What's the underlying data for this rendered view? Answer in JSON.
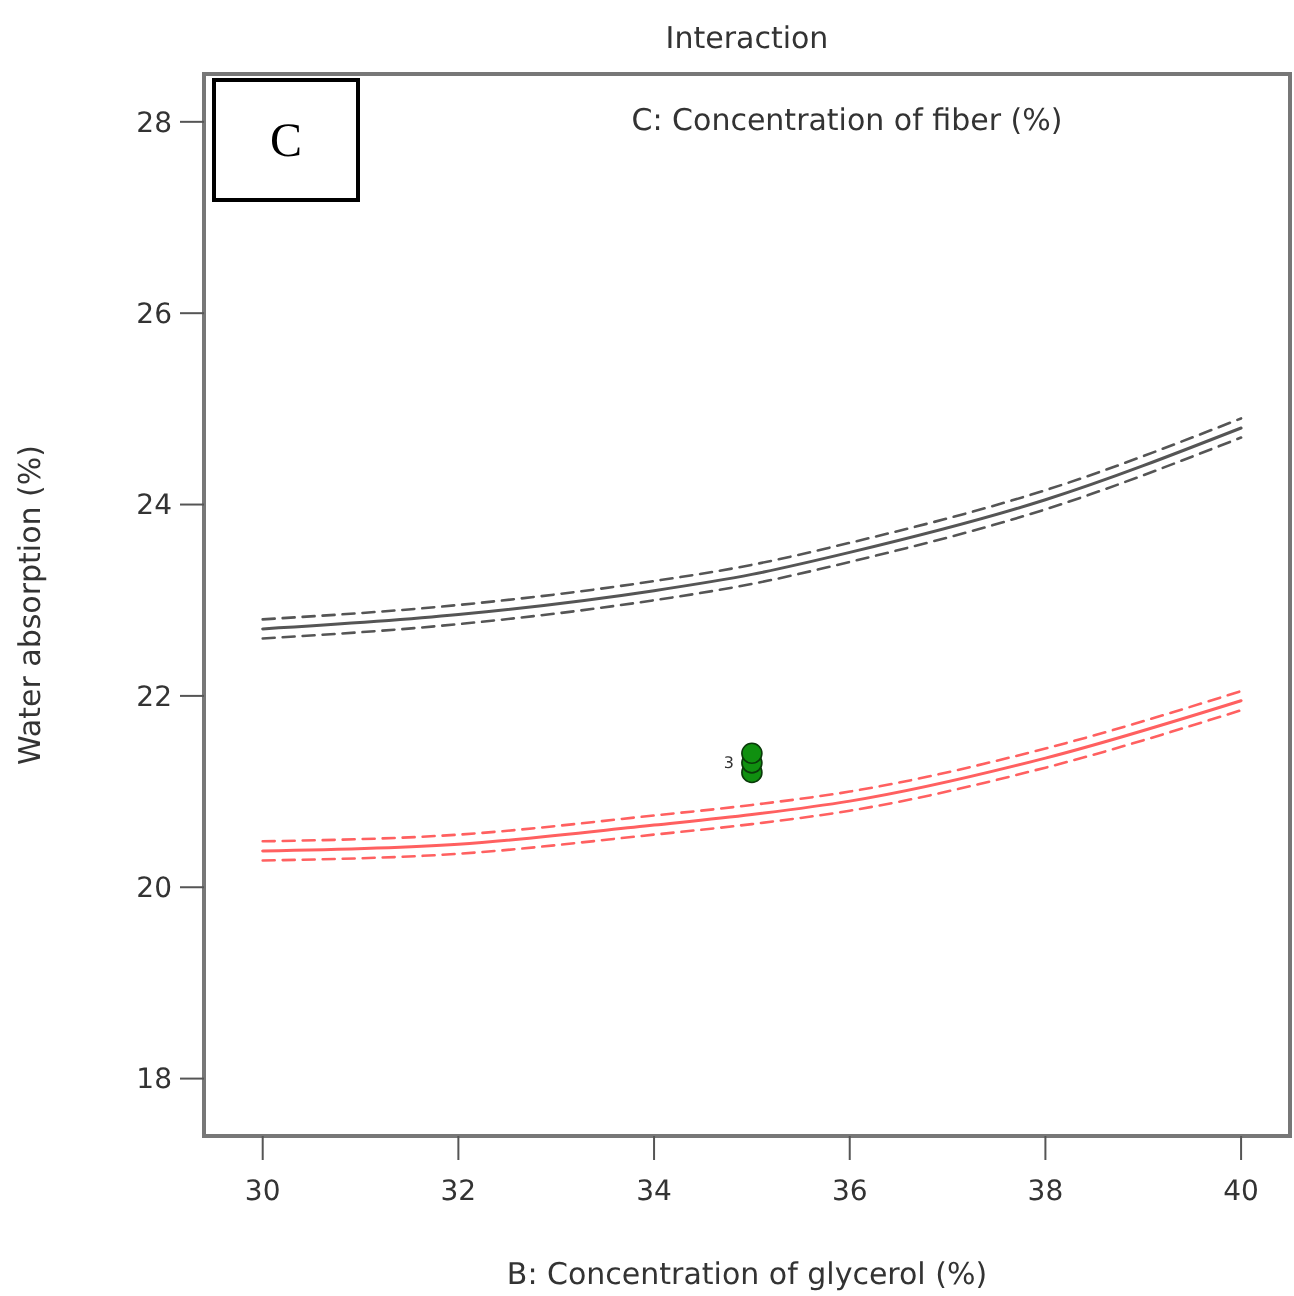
{
  "chart_data": {
    "type": "line",
    "title": "Interaction",
    "subtitle": "C: Concentration of fiber (%)",
    "xlabel": "B: Concentration of glycerol (%)",
    "ylabel": "Water absorption (%)",
    "x": [
      30,
      32,
      34,
      35,
      36,
      38,
      40
    ],
    "series": [
      {
        "color": "#555555",
        "values": [
          22.7,
          22.85,
          23.1,
          23.27,
          23.5,
          24.05,
          24.8
        ]
      },
      {
        "color": "#555555",
        "line_style": "dashed",
        "values": [
          22.6,
          22.75,
          23.0,
          23.17,
          23.4,
          23.95,
          24.7
        ]
      },
      {
        "color": "#555555",
        "line_style": "dashed",
        "values": [
          22.8,
          22.95,
          23.2,
          23.37,
          23.6,
          24.15,
          24.9
        ]
      },
      {
        "color": "#ff6060",
        "values": [
          20.38,
          20.45,
          20.65,
          20.76,
          20.9,
          21.35,
          21.95
        ]
      },
      {
        "color": "#ff6060",
        "line_style": "dashed",
        "values": [
          20.28,
          20.35,
          20.55,
          20.66,
          20.8,
          21.25,
          21.85
        ]
      },
      {
        "color": "#ff6060",
        "line_style": "dashed",
        "values": [
          20.48,
          20.55,
          20.75,
          20.86,
          21.0,
          21.45,
          22.05
        ]
      },
      {
        "type": "scatter",
        "marker": "circle",
        "color": "#109010",
        "values": [
          null,
          null,
          null,
          21.2,
          null,
          null,
          null
        ]
      },
      {
        "type": "scatter",
        "marker": "circle",
        "color": "#109010",
        "values": [
          null,
          null,
          null,
          21.3,
          null,
          null,
          null
        ]
      },
      {
        "type": "scatter",
        "marker": "circle",
        "color": "#109010",
        "values": [
          null,
          null,
          null,
          21.4,
          null,
          null,
          null
        ]
      }
    ],
    "annotations": [
      "C",
      {
        "text": "3",
        "x": 35,
        "y": 21.3
      }
    ],
    "xlim": [
      29.4,
      40.5
    ],
    "ylim": [
      17.4,
      28.5
    ],
    "xticks": [
      30,
      32,
      34,
      36,
      38,
      40
    ],
    "yticks": [
      18,
      20,
      22,
      24,
      26,
      28
    ],
    "grid": false,
    "line_style": "solid"
  }
}
